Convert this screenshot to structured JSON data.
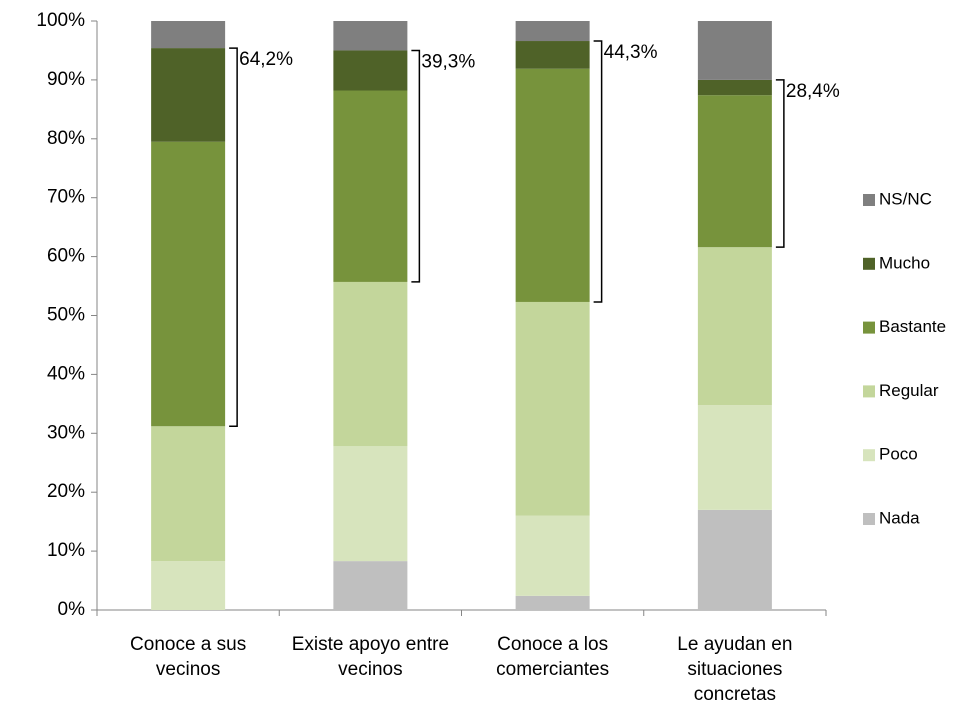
{
  "chart_data": {
    "type": "stacked_bar",
    "categories": [
      "Conoce a sus vecinos",
      "Existe apoyo entre vecinos",
      "Conoce a los comerciantes",
      "Le ayudan en situaciones concretas"
    ],
    "series": [
      {
        "name": "Nada",
        "color": "#bfbfbf",
        "values": [
          0,
          8.3,
          2.4,
          17.0
        ]
      },
      {
        "name": "Poco",
        "color": "#d7e4bd",
        "values": [
          8.3,
          19.5,
          13.6,
          17.8
        ]
      },
      {
        "name": "Regular",
        "color": "#c3d69b",
        "values": [
          22.9,
          27.9,
          36.3,
          26.8
        ]
      },
      {
        "name": "Bastante",
        "color": "#77933c",
        "values": [
          48.3,
          32.5,
          39.6,
          25.8
        ]
      },
      {
        "name": "Mucho",
        "color": "#4f6228",
        "values": [
          15.9,
          6.8,
          4.7,
          2.6
        ]
      },
      {
        "name": "NS/NC",
        "color": "#7f7f7f",
        "values": [
          4.6,
          5.0,
          3.4,
          10.0
        ]
      }
    ],
    "annotations": [
      "64,2%",
      "39,3%",
      "44,3%",
      "28,4%"
    ],
    "ylim": [
      0,
      100
    ],
    "yticks": [
      {
        "value": 0,
        "label": "0%"
      },
      {
        "value": 10,
        "label": "10%"
      },
      {
        "value": 20,
        "label": "20%"
      },
      {
        "value": 30,
        "label": "30%"
      },
      {
        "value": 40,
        "label": "40%"
      },
      {
        "value": 50,
        "label": "50%"
      },
      {
        "value": 60,
        "label": "60%"
      },
      {
        "value": 70,
        "label": "70%"
      },
      {
        "value": 80,
        "label": "80%"
      },
      {
        "value": 90,
        "label": "90%"
      },
      {
        "value": 100,
        "label": "100%"
      }
    ],
    "legend": "right"
  }
}
